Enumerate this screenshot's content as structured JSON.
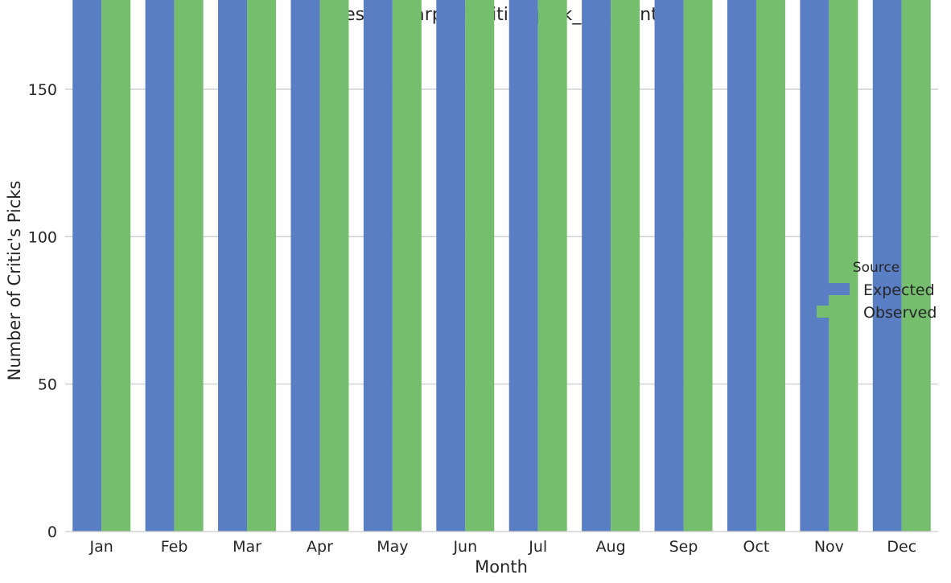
{
  "chart_data": {
    "type": "bar",
    "title": "nested_barplot_critics_pick_by_month",
    "xlabel": "Month",
    "ylabel": "Number of Critic's Picks",
    "categories": [
      "Jan",
      "Feb",
      "Mar",
      "Apr",
      "May",
      "Jun",
      "Jul",
      "Aug",
      "Sep",
      "Oct",
      "Nov",
      "Dec"
    ],
    "series": [
      {
        "name": "Expected",
        "color": "#5a7ec3",
        "values": [
          211,
          226,
          289,
          286,
          269,
          251,
          223,
          254,
          294,
          323,
          266,
          236
        ]
      },
      {
        "name": "Observed",
        "color": "#75be6e",
        "values": [
          196,
          212,
          276,
          248,
          253,
          257,
          239,
          249,
          305,
          325,
          276,
          291
        ]
      }
    ],
    "ylim": [
      0,
      330
    ],
    "yticks": [
      0,
      50,
      100,
      150,
      200,
      250,
      300
    ],
    "grid": "horizontal",
    "legend": {
      "title": "Source",
      "placement": "right"
    }
  }
}
